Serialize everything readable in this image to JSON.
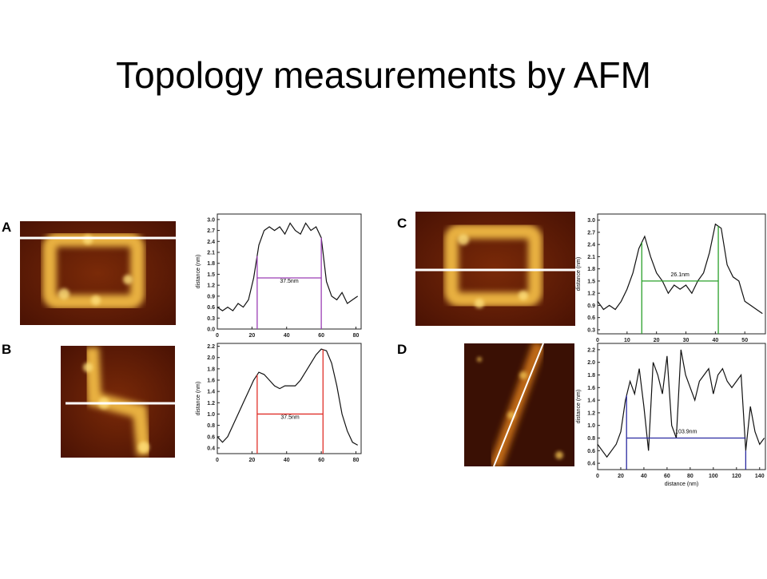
{
  "title": "Topology measurements by AFM",
  "chart_data": [
    {
      "type": "line",
      "panel": "A",
      "ylabel": "distance (nm)",
      "annotation": "37.5nm",
      "x": [
        0,
        3,
        6,
        9,
        12,
        15,
        18,
        21,
        24,
        27,
        30,
        33,
        36,
        39,
        42,
        45,
        48,
        51,
        54,
        57,
        60,
        63,
        66,
        69,
        72,
        75,
        78,
        81
      ],
      "values": [
        0.6,
        0.5,
        0.6,
        0.5,
        0.7,
        0.6,
        0.8,
        1.4,
        2.3,
        2.7,
        2.8,
        2.7,
        2.8,
        2.6,
        2.9,
        2.7,
        2.6,
        2.9,
        2.7,
        2.8,
        2.5,
        1.3,
        0.9,
        0.8,
        1.0,
        0.7,
        0.8,
        0.9
      ],
      "color": "#111111",
      "markers": {
        "x": [
          23,
          60
        ],
        "y": 1.4,
        "color": "#9b3fb5"
      },
      "xlim": [
        0,
        83
      ],
      "ylim": [
        0,
        3.15
      ],
      "xticks": [
        0,
        20,
        40,
        60,
        80
      ],
      "yticks": [
        {
          "value": 0,
          "label": "0.0"
        },
        0.3,
        0.6,
        0.9,
        1.2,
        1.5,
        1.8,
        2.1,
        2.4,
        2.7,
        {
          "value": 3,
          "label": "3.0"
        }
      ]
    },
    {
      "type": "line",
      "panel": "B",
      "ylabel": "distance (nm)",
      "annotation": "37.5nm",
      "x": [
        0,
        3,
        6,
        9,
        12,
        15,
        18,
        21,
        24,
        27,
        30,
        33,
        36,
        39,
        42,
        45,
        48,
        51,
        54,
        57,
        60,
        63,
        66,
        69,
        72,
        75,
        78,
        81
      ],
      "values": [
        0.6,
        0.5,
        0.6,
        0.8,
        1.0,
        1.2,
        1.4,
        1.6,
        1.74,
        1.7,
        1.6,
        1.5,
        1.45,
        1.5,
        1.5,
        1.5,
        1.6,
        1.75,
        1.9,
        2.05,
        2.15,
        2.12,
        1.9,
        1.5,
        1.0,
        0.7,
        0.5,
        0.45
      ],
      "color": "#111111",
      "markers": {
        "x": [
          23,
          61
        ],
        "y": 1.0,
        "color": "#e0302a"
      },
      "xlim": [
        0,
        83
      ],
      "ylim": [
        0.3,
        2.25
      ],
      "xticks": [
        0,
        20,
        40,
        60,
        80
      ],
      "yticks": [
        0.4,
        0.6,
        0.8,
        {
          "value": 1,
          "label": "1.0"
        },
        1.2,
        1.4,
        1.6,
        1.8,
        {
          "value": 2,
          "label": "2.0"
        },
        2.2
      ]
    },
    {
      "type": "line",
      "panel": "C",
      "ylabel": "distance (nm)",
      "annotation": "26.1nm",
      "x": [
        0,
        2,
        4,
        6,
        8,
        10,
        12,
        14,
        16,
        18,
        20,
        22,
        24,
        26,
        28,
        30,
        32,
        34,
        36,
        38,
        40,
        42,
        44,
        46,
        48,
        50,
        52,
        54,
        56
      ],
      "values": [
        1.0,
        0.8,
        0.9,
        0.8,
        1.0,
        1.3,
        1.7,
        2.3,
        2.6,
        2.1,
        1.7,
        1.5,
        1.2,
        1.4,
        1.3,
        1.4,
        1.2,
        1.5,
        1.7,
        2.2,
        2.9,
        2.8,
        1.9,
        1.6,
        1.5,
        1.0,
        0.9,
        0.8,
        0.7
      ],
      "color": "#111111",
      "markers": {
        "x": [
          15,
          41
        ],
        "y": 1.5,
        "color": "#2aa02a"
      },
      "xlim": [
        0,
        57
      ],
      "ylim": [
        0.2,
        3.15
      ],
      "xticks": [
        0,
        10,
        20,
        30,
        40,
        50
      ],
      "yticks": [
        0.3,
        0.6,
        0.9,
        1.2,
        1.5,
        1.8,
        2.1,
        2.4,
        2.7,
        {
          "value": 3,
          "label": "3.0"
        }
      ]
    },
    {
      "type": "line",
      "panel": "D",
      "ylabel": "distance (nm)",
      "xlabel": "distance (nm)",
      "annotation": "103.9nm",
      "x": [
        0,
        4,
        8,
        12,
        16,
        20,
        24,
        28,
        32,
        36,
        40,
        44,
        48,
        52,
        56,
        60,
        64,
        68,
        72,
        76,
        80,
        84,
        88,
        92,
        96,
        100,
        104,
        108,
        112,
        116,
        120,
        124,
        128,
        132,
        136,
        140,
        144
      ],
      "values": [
        0.7,
        0.6,
        0.5,
        0.6,
        0.7,
        0.9,
        1.4,
        1.7,
        1.5,
        1.9,
        1.3,
        0.6,
        2.0,
        1.8,
        1.5,
        2.1,
        1.0,
        0.8,
        2.2,
        1.8,
        1.6,
        1.4,
        1.7,
        1.8,
        1.9,
        1.5,
        1.8,
        1.9,
        1.7,
        1.6,
        1.7,
        1.8,
        0.6,
        1.3,
        0.9,
        0.7,
        0.8
      ],
      "color": "#111111",
      "markers": {
        "x": [
          25,
          128
        ],
        "y": 0.8,
        "color": "#2a2aa0"
      },
      "xlim": [
        0,
        145
      ],
      "ylim": [
        0.3,
        2.3
      ],
      "xticks": [
        0,
        20,
        40,
        60,
        80,
        100,
        120,
        140
      ],
      "yticks": [
        0.4,
        0.6,
        0.8,
        {
          "value": 1,
          "label": "1.0"
        },
        1.2,
        1.4,
        1.6,
        1.8,
        {
          "value": 2,
          "label": "2.0"
        },
        2.2
      ]
    }
  ]
}
